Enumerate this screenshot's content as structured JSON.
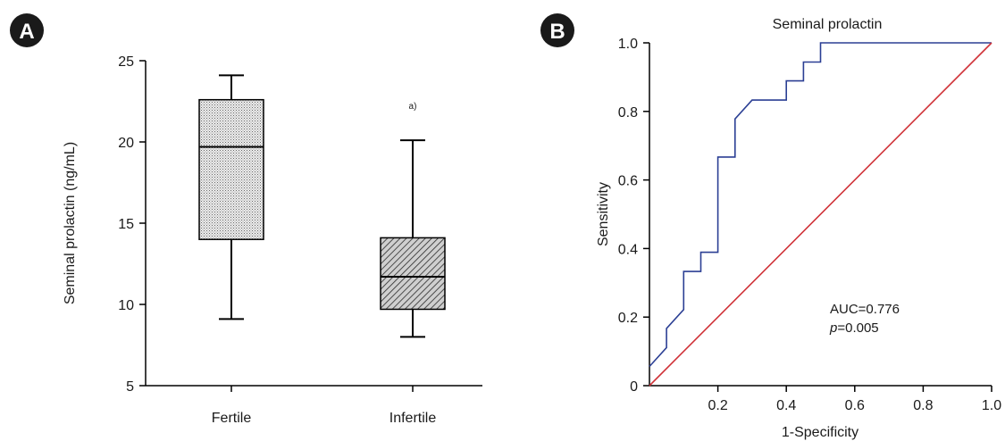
{
  "chart_data": [
    {
      "type": "box",
      "panel_label": "A",
      "ylabel": "Seminal prolactin (ng/mL)",
      "xlabel": "",
      "ylim": [
        5,
        25
      ],
      "yticks": [
        5,
        10,
        15,
        20,
        25
      ],
      "categories": [
        "Fertile",
        "Infertile"
      ],
      "boxes": [
        {
          "category": "Fertile",
          "min": 9.1,
          "q1": 14.0,
          "median": 19.7,
          "q3": 22.6,
          "max": 24.1,
          "fill_pattern": "dotted",
          "annotation": ""
        },
        {
          "category": "Infertile",
          "min": 8.0,
          "q1": 9.7,
          "median": 11.7,
          "q3": 14.1,
          "max": 20.1,
          "fill_pattern": "diagonal-hatch",
          "annotation": "a)"
        }
      ]
    },
    {
      "type": "line",
      "panel_label": "B",
      "title": "Seminal prolactin",
      "xlabel": "1-Specificity",
      "ylabel": "Sensitivity",
      "xlim": [
        0,
        1.0
      ],
      "ylim": [
        0,
        1.0
      ],
      "xticks": [
        "0.2",
        "0.4",
        "0.6",
        "0.8",
        "1.0"
      ],
      "yticks": [
        "0",
        "0.2",
        "0.4",
        "0.6",
        "0.8",
        "1.0"
      ],
      "series": [
        {
          "color": "#2b3f94",
          "points": [
            [
              0,
              0.056
            ],
            [
              0.05,
              0.111
            ],
            [
              0.05,
              0.167
            ],
            [
              0.1,
              0.222
            ],
            [
              0.1,
              0.333
            ],
            [
              0.15,
              0.333
            ],
            [
              0.15,
              0.389
            ],
            [
              0.2,
              0.389
            ],
            [
              0.2,
              0.667
            ],
            [
              0.25,
              0.667
            ],
            [
              0.25,
              0.778
            ],
            [
              0.3,
              0.833
            ],
            [
              0.4,
              0.833
            ],
            [
              0.4,
              0.889
            ],
            [
              0.45,
              0.889
            ],
            [
              0.45,
              0.944
            ],
            [
              0.5,
              0.944
            ],
            [
              0.5,
              1.0
            ],
            [
              1.0,
              1.0
            ]
          ]
        },
        {
          "color": "#d03238",
          "points": [
            [
              0,
              0
            ],
            [
              1.0,
              1.0
            ]
          ]
        }
      ],
      "annotations": {
        "auc": "AUC=0.776",
        "p_label": "p",
        "p_value": "=0.005"
      }
    }
  ]
}
